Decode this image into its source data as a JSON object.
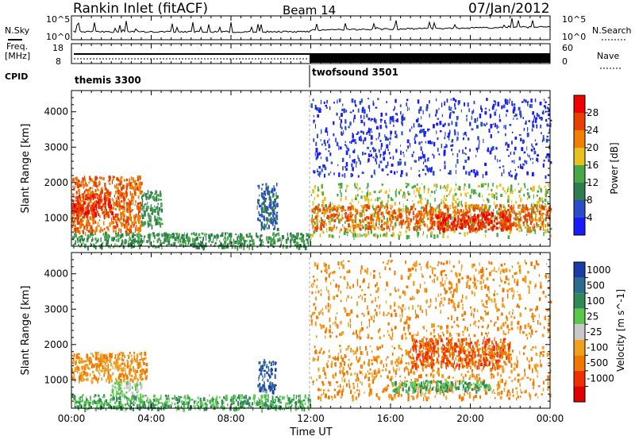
{
  "header": {
    "radar": "Rankin Inlet (fitACF)",
    "beam": "Beam 14",
    "date": "07/Jan/2012"
  },
  "top_panels": {
    "nsky_label": "N.Sky",
    "nsearch_label": "N.Search",
    "noise_ticks": [
      "10^5",
      "10^0"
    ],
    "freq_label_1": "Freq.",
    "freq_label_2": "[MHz]",
    "freq_ticks": [
      "18",
      "8"
    ],
    "nave_label": "Nave",
    "nave_ticks": [
      "60",
      "0"
    ],
    "cpid_label": "CPID",
    "cpid_1": "themis 3300",
    "cpid_2": "twofsound 3501"
  },
  "axes": {
    "xlabel": "Time UT",
    "x_ticks": [
      "00:00",
      "04:00",
      "08:00",
      "12:00",
      "16:00",
      "20:00",
      "00:00"
    ],
    "ylabel": "Slant Range [km]",
    "y_ticks": [
      "1000",
      "2000",
      "3000",
      "4000"
    ]
  },
  "colorbars": {
    "power": {
      "label": "Power [dB]",
      "ticks": [
        "4",
        "8",
        "12",
        "16",
        "20",
        "24",
        "28"
      ],
      "colors": [
        "#1a1aff",
        "#2a4cc8",
        "#2e7d4f",
        "#48a848",
        "#e8c020",
        "#f08000",
        "#e84000",
        "#f00000"
      ]
    },
    "velocity": {
      "label": "Velocity [m s^-1]",
      "ticks": [
        "1000",
        "500",
        "100",
        "25",
        "-25",
        "-100",
        "-500",
        "-1000"
      ],
      "colors": [
        "#1a3ca8",
        "#2e6b90",
        "#2e8b57",
        "#5ac84a",
        "#c8c8c8",
        "#f0a020",
        "#f07800",
        "#f03000",
        "#e00000"
      ]
    }
  },
  "chart_data": [
    {
      "type": "heatmap",
      "title": "Power [dB]",
      "xlabel": "Time UT",
      "ylabel": "Slant Range [km]",
      "xlim": [
        0,
        24
      ],
      "ylim": [
        200,
        4600
      ],
      "regions": [
        {
          "t0": 0.0,
          "t1": 3.5,
          "r0": 600,
          "r1": 2200,
          "level": 24
        },
        {
          "t0": 0.0,
          "t1": 2.0,
          "r0": 1100,
          "r1": 1700,
          "level": 28
        },
        {
          "t0": 3.5,
          "t1": 4.5,
          "r0": 800,
          "r1": 1800,
          "level": 12
        },
        {
          "t0": 0.0,
          "t1": 12.0,
          "r0": 200,
          "r1": 600,
          "level": 12
        },
        {
          "t0": 9.3,
          "t1": 10.3,
          "r0": 700,
          "r1": 2000,
          "level": 8
        },
        {
          "t0": 12.0,
          "t1": 24.0,
          "r0": 500,
          "r1": 2000,
          "level": 16
        },
        {
          "t0": 12.0,
          "t1": 24.0,
          "r0": 700,
          "r1": 1400,
          "level": 24
        },
        {
          "t0": 18.0,
          "t1": 22.0,
          "r0": 700,
          "r1": 1200,
          "level": 28
        },
        {
          "t0": 12.0,
          "t1": 24.0,
          "r0": 2200,
          "r1": 4400,
          "level": 4
        }
      ]
    },
    {
      "type": "heatmap",
      "title": "Velocity [m s^-1]",
      "xlabel": "Time UT",
      "ylabel": "Slant Range [km]",
      "xlim": [
        0,
        24
      ],
      "ylim": [
        200,
        4600
      ],
      "regions": [
        {
          "t0": 0.0,
          "t1": 3.8,
          "r0": 1000,
          "r1": 1800,
          "level": -100
        },
        {
          "t0": 2.0,
          "t1": 3.5,
          "r0": 600,
          "r1": 1000,
          "level": 25
        },
        {
          "t0": 0.0,
          "t1": 12.0,
          "r0": 200,
          "r1": 600,
          "level": 100
        },
        {
          "t0": 9.3,
          "t1": 10.2,
          "r0": 700,
          "r1": 1600,
          "level": 1000
        },
        {
          "t0": 12.0,
          "t1": 24.0,
          "r0": 500,
          "r1": 2000,
          "level": -100
        },
        {
          "t0": 17.0,
          "t1": 22.0,
          "r0": 1400,
          "r1": 2200,
          "level": -500
        },
        {
          "t0": 16.0,
          "t1": 21.0,
          "r0": 700,
          "r1": 1000,
          "level": 100
        },
        {
          "t0": 12.0,
          "t1": 24.0,
          "r0": 2200,
          "r1": 4400,
          "level": -100
        }
      ]
    }
  ]
}
